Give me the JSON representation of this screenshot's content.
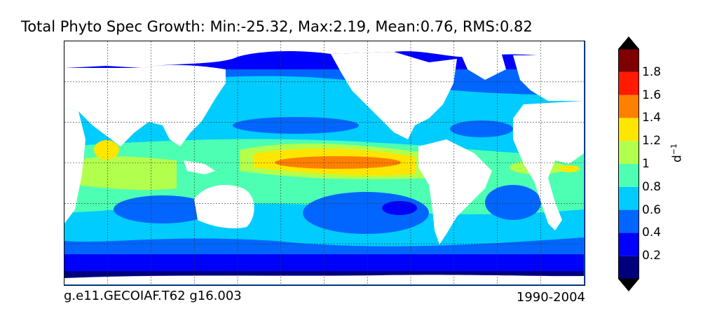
{
  "title": "Total Phyto Spec Growth: Min:-25.32, Max:2.19, Mean:0.76, RMS:0.82",
  "footer": {
    "case": "g.e11.GECOIAF.T62 g16.003",
    "years": "1990-2004"
  },
  "colorbar": {
    "unit": "d",
    "unit_exponent": "−1",
    "ticks": [
      "0.2",
      "0.4",
      "0.6",
      "0.8",
      "1",
      "1.2",
      "1.4",
      "1.6",
      "1.8"
    ],
    "colors": [
      "#00007f",
      "#0000ff",
      "#0066ff",
      "#00ccff",
      "#4dffb2",
      "#b2ff4d",
      "#ffe600",
      "#ff7f00",
      "#ff1a00",
      "#7f0000"
    ],
    "extend": "both"
  },
  "map": {
    "projection": "global equirectangular, centered on Pacific",
    "land_color": "#ffffff",
    "gridlines": "dashed"
  }
}
